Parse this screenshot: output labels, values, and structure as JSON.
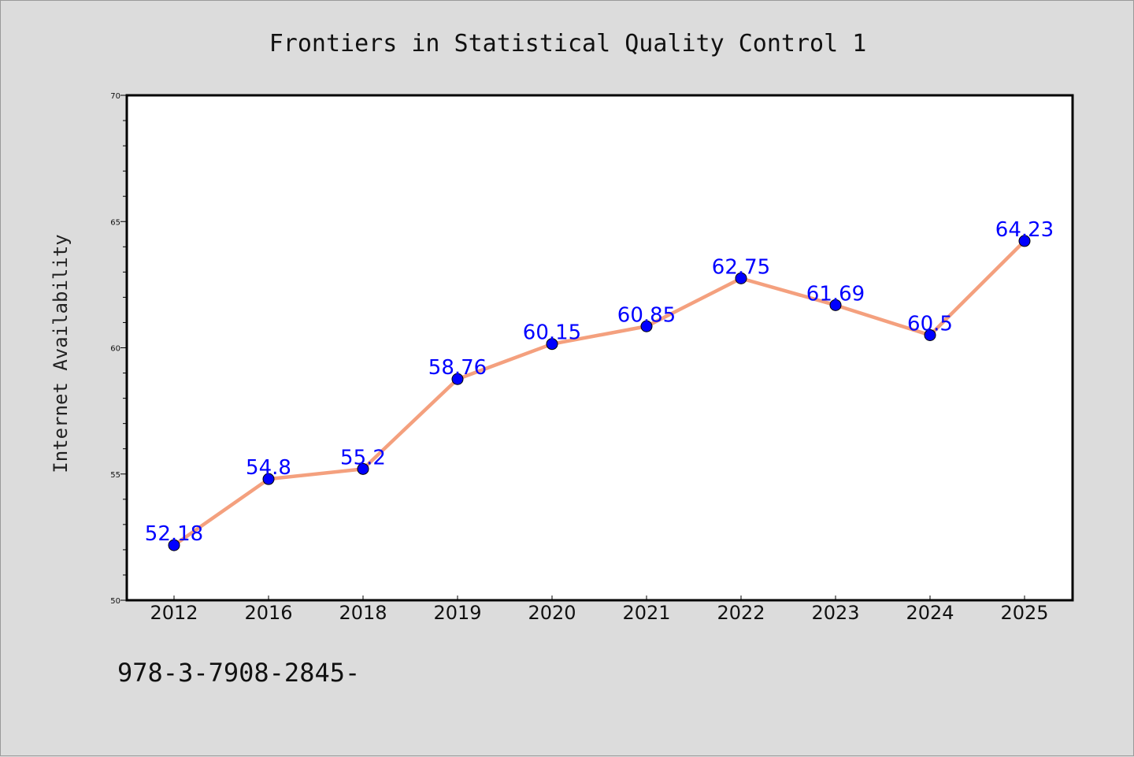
{
  "chart_data": {
    "type": "line",
    "title": "Frontiers in Statistical Quality Control 1",
    "xlabel": "",
    "ylabel": "Internet Availability",
    "categories": [
      "2012",
      "2016",
      "2018",
      "2019",
      "2020",
      "2021",
      "2022",
      "2023",
      "2024",
      "2025"
    ],
    "series": [
      {
        "values": [
          52.18,
          54.8,
          55.2,
          58.76,
          60.15,
          60.85,
          62.75,
          61.69,
          60.5,
          64.23
        ],
        "data_labels": [
          "52.18",
          "54.8",
          "55.2",
          "58.76",
          "60.15",
          "60.85",
          "62.75",
          "61.69",
          "60.5",
          "64.23"
        ],
        "line_color": "#f4a07e",
        "marker_color": "#0000ff"
      }
    ],
    "ylim": [
      50,
      70
    ],
    "yticks": [
      "50",
      "55",
      "60",
      "65",
      "70"
    ],
    "grid": false,
    "legend": "none"
  },
  "footer": {
    "text": "978-3-7908-2845-"
  },
  "colors": {
    "background": "#dcdcdc",
    "plot_background": "#ffffff",
    "line": "#f4a07e",
    "marker": "#0000ff",
    "data_label": "#0000ff"
  }
}
